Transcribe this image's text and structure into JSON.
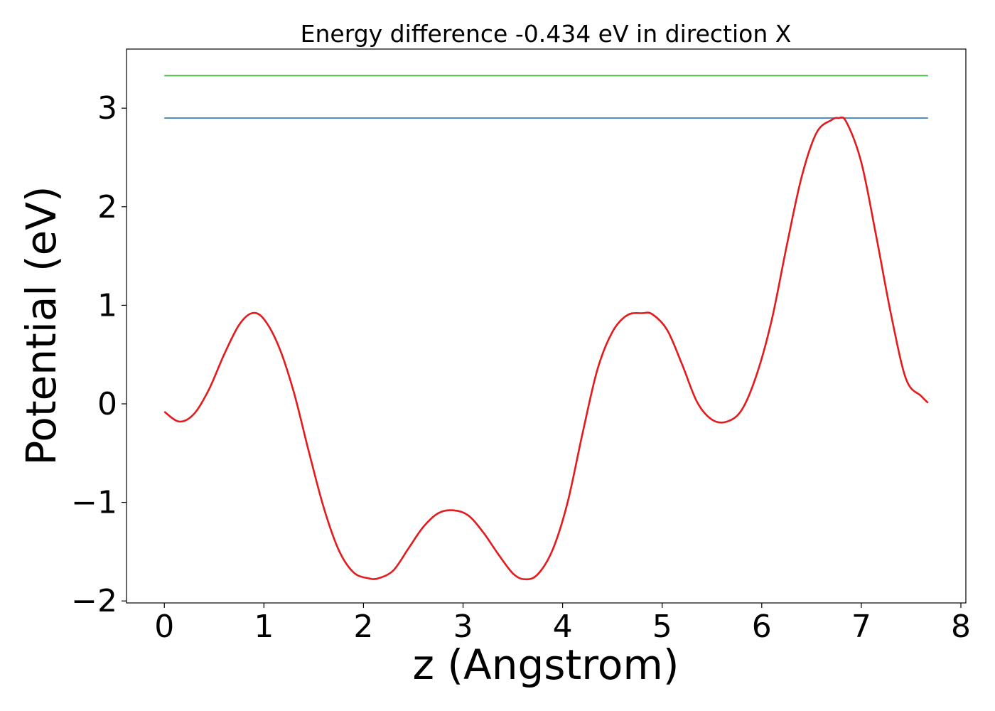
{
  "chart_data": {
    "type": "line",
    "title": "Energy difference -0.434 eV in direction X",
    "xlabel": "z (Angstrom)",
    "ylabel": "Potential (eV)",
    "xlim": [
      -0.38,
      8.05
    ],
    "ylim": [
      -2.02,
      3.6
    ],
    "x_ticks": [
      0,
      1,
      2,
      3,
      4,
      5,
      6,
      7,
      8
    ],
    "y_ticks": [
      -2,
      -1,
      0,
      1,
      2,
      3
    ],
    "x_tick_labels": [
      "0",
      "1",
      "2",
      "3",
      "4",
      "5",
      "6",
      "7",
      "8"
    ],
    "y_tick_labels": [
      "−2",
      "−1",
      "0",
      "1",
      "2",
      "3"
    ],
    "grid": false,
    "legend": "none",
    "colors": {
      "curve": "#e41a1c",
      "upper": "#4daf4a",
      "lower": "#377eb8"
    },
    "series": [
      {
        "color": "#4daf4a",
        "x": [
          0.0,
          7.67
        ],
        "y": [
          3.33,
          3.33
        ]
      },
      {
        "color": "#377eb8",
        "x": [
          0.0,
          7.67
        ],
        "y": [
          2.9,
          2.9
        ]
      },
      {
        "color": "#e41a1c",
        "x": [
          0.0,
          0.15,
          0.3,
          0.45,
          0.6,
          0.75,
          0.88,
          1.0,
          1.15,
          1.3,
          1.45,
          1.6,
          1.75,
          1.9,
          2.05,
          2.15,
          2.3,
          2.45,
          2.6,
          2.75,
          2.9,
          3.05,
          3.2,
          3.35,
          3.5,
          3.62,
          3.75,
          3.9,
          4.05,
          4.2,
          4.35,
          4.5,
          4.65,
          4.8,
          4.9,
          5.05,
          5.2,
          5.35,
          5.5,
          5.65,
          5.8,
          5.95,
          6.1,
          6.25,
          6.4,
          6.55,
          6.7,
          6.77,
          6.85,
          7.0,
          7.15,
          7.3,
          7.45,
          7.6,
          7.67
        ],
        "y": [
          -0.08,
          -0.18,
          -0.1,
          0.15,
          0.5,
          0.8,
          0.92,
          0.86,
          0.58,
          0.12,
          -0.48,
          -1.05,
          -1.48,
          -1.71,
          -1.77,
          -1.77,
          -1.69,
          -1.47,
          -1.25,
          -1.11,
          -1.08,
          -1.13,
          -1.3,
          -1.52,
          -1.72,
          -1.78,
          -1.73,
          -1.48,
          -1.0,
          -0.3,
          0.35,
          0.73,
          0.9,
          0.92,
          0.91,
          0.75,
          0.4,
          0.02,
          -0.16,
          -0.18,
          -0.06,
          0.3,
          0.85,
          1.6,
          2.3,
          2.75,
          2.88,
          2.9,
          2.86,
          2.45,
          1.7,
          0.9,
          0.25,
          0.08,
          0.01
        ]
      }
    ]
  }
}
